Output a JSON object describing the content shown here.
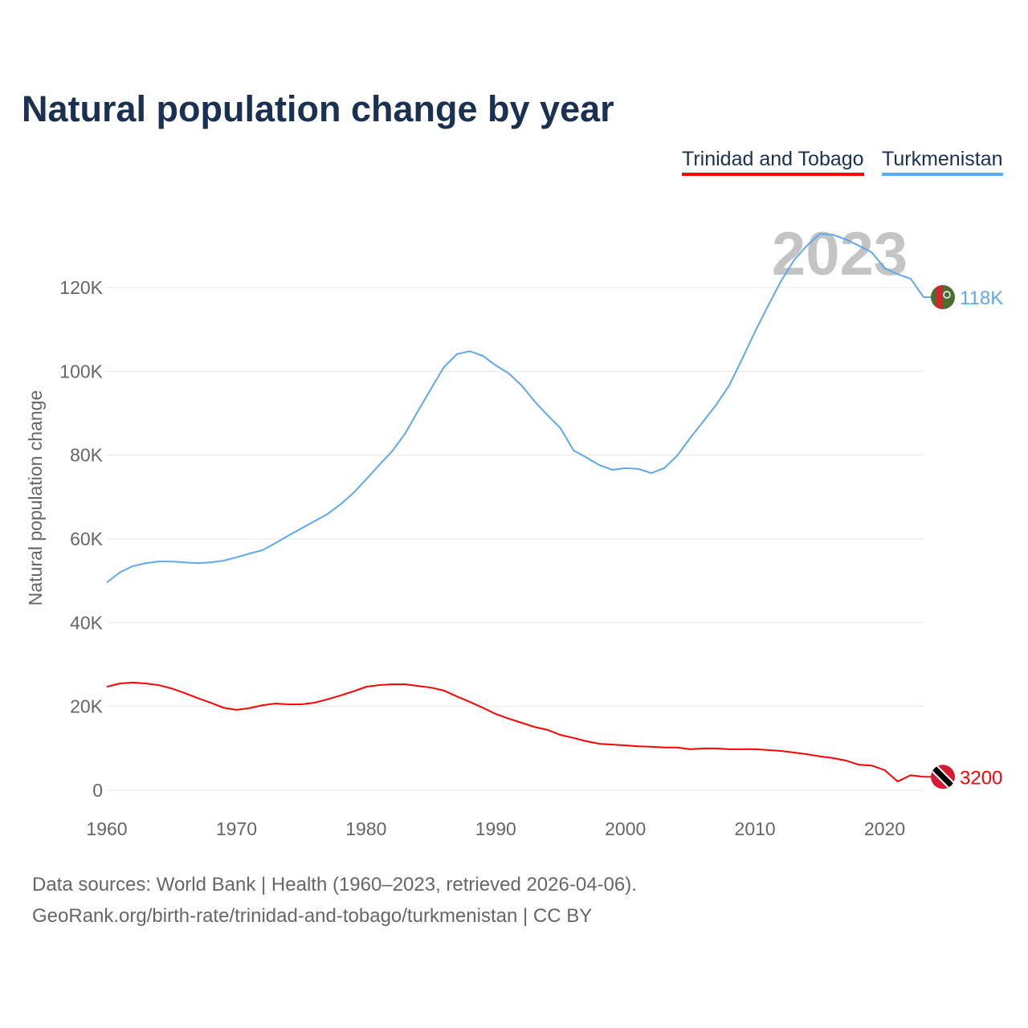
{
  "title": "Natural population change by year",
  "footer": {
    "line1": "Data sources: World Bank | Health (1960–2023, retrieved 2026-04-06).",
    "line2": "GeoRank.org/birth-rate/trinidad-and-tobago/turkmenistan | CC BY"
  },
  "chart_data": {
    "type": "line",
    "title": "Natural population change by year",
    "xlabel": "",
    "ylabel": "Natural population change",
    "xlim": [
      1960,
      2023
    ],
    "ylim": [
      0,
      130000
    ],
    "grid": true,
    "legend": "top-right",
    "year_watermark": "2023",
    "x_ticks": [
      1960,
      1970,
      1980,
      1990,
      2000,
      2010,
      2020
    ],
    "y_ticks": [
      0,
      20000,
      40000,
      60000,
      80000,
      100000,
      120000
    ],
    "y_tick_labels": [
      "0",
      "20K",
      "40K",
      "60K",
      "80K",
      "100K",
      "120K"
    ],
    "x_start": 1960,
    "series": [
      {
        "name": "Trinidad and Tobago",
        "color": "#ff0000",
        "end_label": "3200",
        "flag": "trinidad-and-tobago-flag",
        "values": [
          24700,
          25500,
          25700,
          25500,
          25100,
          24300,
          23200,
          22000,
          20900,
          19700,
          19200,
          19600,
          20300,
          20700,
          20500,
          20500,
          20900,
          21700,
          22600,
          23600,
          24700,
          25100,
          25300,
          25300,
          24900,
          24500,
          23800,
          22400,
          21100,
          19700,
          18200,
          17100,
          16100,
          15100,
          14400,
          13200,
          12500,
          11700,
          11100,
          10900,
          10700,
          10500,
          10400,
          10200,
          10200,
          9800,
          10000,
          10000,
          9800,
          9800,
          9800,
          9600,
          9400,
          9000,
          8600,
          8100,
          7700,
          7100,
          6100,
          5900,
          4800,
          2100,
          3600,
          3200
        ]
      },
      {
        "name": "Turkmenistan",
        "color": "#5ea8ee",
        "end_label": "118K",
        "flag": "turkmenistan-flag",
        "values": [
          49600,
          52000,
          53500,
          54200,
          54600,
          54600,
          54400,
          54200,
          54400,
          54800,
          55600,
          56500,
          57300,
          59000,
          60800,
          62500,
          64200,
          65900,
          68200,
          70900,
          74200,
          77600,
          80900,
          85100,
          90500,
          95800,
          101000,
          104100,
          104800,
          103700,
          101400,
          99500,
          96600,
          92800,
          89500,
          86400,
          81100,
          79400,
          77600,
          76500,
          76900,
          76700,
          75700,
          76900,
          79900,
          84100,
          88000,
          92000,
          96600,
          102900,
          109500,
          115600,
          121500,
          126500,
          130000,
          132800,
          132600,
          131500,
          130000,
          128400,
          124600,
          123200,
          122100,
          117700
        ]
      }
    ]
  }
}
